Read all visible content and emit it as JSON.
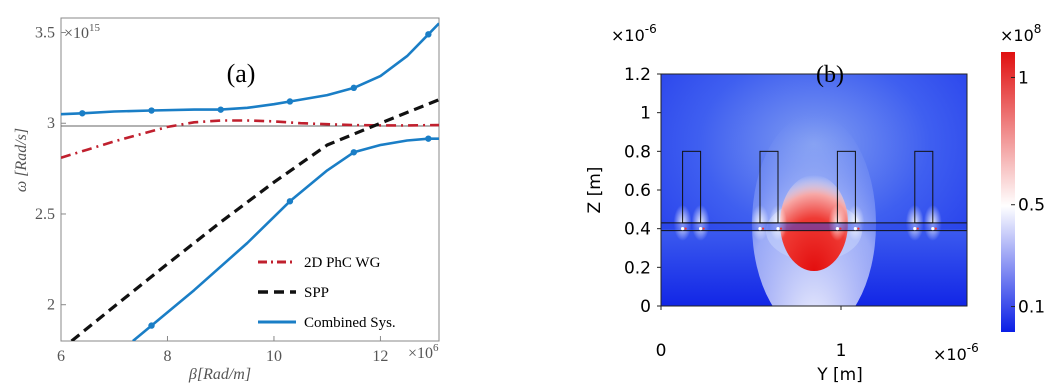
{
  "chart_data": [
    {
      "type": "line",
      "panel_label": "(a)",
      "xlabel": "β[Rad/m]",
      "ylabel": "ω [Rad/s]",
      "x_multiplier": "×10",
      "x_multiplier_exp": "6",
      "y_multiplier": "×10",
      "y_multiplier_exp": "15",
      "xlim": [
        6,
        13.1
      ],
      "ylim": [
        1.8,
        3.58
      ],
      "x_ticks": [
        6,
        8,
        10,
        12
      ],
      "x_tick_labels": [
        "6",
        "8",
        "10",
        "12"
      ],
      "y_ticks": [
        2,
        2.5,
        3,
        3.5
      ],
      "y_tick_labels": [
        "2",
        "2.5",
        "3",
        "3.5"
      ],
      "reference_line_y": 2.985,
      "legend_position": "bottom-right",
      "series": [
        {
          "name": "2D PhC WG",
          "style": "dash-dot",
          "color": "#c0202e",
          "x": [
            6.0,
            6.5,
            7.0,
            7.5,
            8.0,
            8.5,
            9.0,
            9.5,
            10.0,
            10.5,
            11.0,
            11.5,
            12.0,
            12.5,
            13.1
          ],
          "y": [
            2.81,
            2.855,
            2.9,
            2.94,
            2.98,
            3.005,
            3.015,
            3.015,
            3.01,
            3.0,
            2.995,
            2.99,
            2.988,
            2.988,
            2.99
          ],
          "markers": []
        },
        {
          "name": "SPP",
          "style": "dash",
          "color": "#111111",
          "x": [
            6.2,
            7.0,
            8.0,
            9.0,
            10.0,
            11.0,
            12.0,
            13.1
          ],
          "y": [
            1.8,
            1.99,
            2.225,
            2.455,
            2.675,
            2.88,
            3.0,
            3.13
          ],
          "markers": []
        },
        {
          "name": "Combined Sys.",
          "style": "solid",
          "color": "#1a7ec6",
          "x": [
            6.0,
            6.4,
            7.0,
            7.7,
            8.5,
            9.0,
            9.5,
            10.0,
            10.3,
            11.0,
            11.5,
            12.0,
            12.5,
            12.9,
            13.1
          ],
          "y": [
            3.05,
            3.055,
            3.065,
            3.07,
            3.075,
            3.075,
            3.085,
            3.105,
            3.12,
            3.155,
            3.195,
            3.26,
            3.37,
            3.49,
            3.55
          ],
          "markers": [
            [
              6.4,
              3.055
            ],
            [
              7.7,
              3.07
            ],
            [
              9.0,
              3.075
            ],
            [
              10.3,
              3.12
            ],
            [
              11.5,
              3.195
            ],
            [
              12.9,
              3.49
            ]
          ]
        },
        {
          "name": "",
          "style": "solid",
          "color": "#1a7ec6",
          "x": [
            7.35,
            7.7,
            8.5,
            9.5,
            10.3,
            11.0,
            11.5,
            12.0,
            12.5,
            12.9,
            13.1
          ],
          "y": [
            1.8,
            1.885,
            2.08,
            2.34,
            2.57,
            2.74,
            2.84,
            2.88,
            2.905,
            2.915,
            2.915
          ],
          "markers": [
            [
              7.7,
              1.885
            ],
            [
              10.3,
              2.57
            ],
            [
              11.5,
              2.84
            ],
            [
              12.9,
              2.915
            ]
          ]
        }
      ]
    },
    {
      "type": "heatmap",
      "panel_label": "(b)",
      "xlabel": "Y [m]",
      "ylabel": "Z [m]",
      "x_multiplier": "×10",
      "x_multiplier_exp": "-6",
      "y_multiplier": "×10",
      "y_multiplier_exp": "-6",
      "xlim": [
        0,
        1.7
      ],
      "ylim": [
        0,
        1.2
      ],
      "x_ticks": [
        0,
        1
      ],
      "x_tick_labels": [
        "0",
        "1"
      ],
      "y_ticks": [
        0,
        0.2,
        0.4,
        0.6,
        0.8,
        1,
        1.2
      ],
      "y_tick_labels": [
        "0",
        "0.2",
        "0.4",
        "0.6",
        "0.8",
        "1",
        "1.2"
      ],
      "colorbar": {
        "multiplier": "×10",
        "multiplier_exp": "8",
        "range": [
          0,
          1.1
        ],
        "ticks": [
          0.1,
          0.5,
          1
        ],
        "tick_labels": [
          "0.1",
          "0.5",
          "1"
        ],
        "colors": [
          "#0a1ee6",
          "#ffffff",
          "#e01010"
        ]
      },
      "pillars_y": [
        0.17,
        0.6,
        1.03,
        1.46
      ],
      "pillar_width": 0.1,
      "pillar_top": 0.8,
      "slab_bottom": 0.39,
      "slab_top": 0.43,
      "hotspot_center": [
        0.85,
        0.43
      ]
    }
  ]
}
